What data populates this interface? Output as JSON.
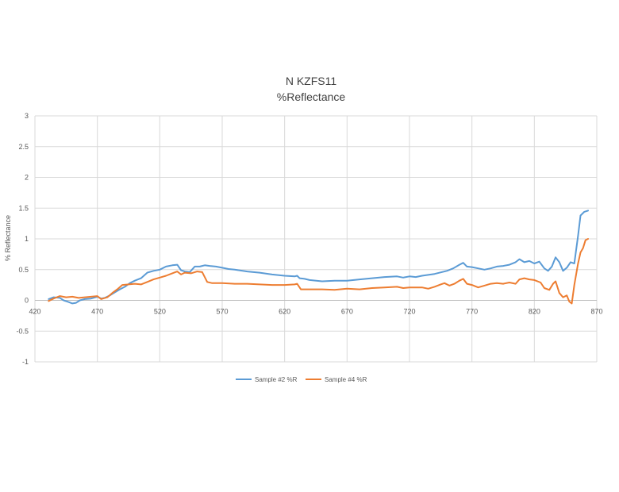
{
  "chart_data": {
    "type": "line",
    "title": "N KZFS11",
    "subtitle": "%Reflectance",
    "xlabel": "",
    "ylabel": "% Reflectance",
    "xlim": [
      420,
      870
    ],
    "ylim": [
      -1,
      3
    ],
    "x_ticks": [
      420,
      470,
      520,
      570,
      620,
      670,
      720,
      770,
      820,
      870
    ],
    "y_ticks": [
      -1,
      -0.5,
      0,
      0.5,
      1,
      1.5,
      2,
      2.5,
      3
    ],
    "grid": true,
    "legend": "bottom",
    "series": [
      {
        "name": "Sample #2 %R",
        "color": "#5b9bd5",
        "points": [
          [
            431,
            0.02
          ],
          [
            435,
            0.05
          ],
          [
            440,
            0.04
          ],
          [
            443,
            0.0
          ],
          [
            446,
            -0.02
          ],
          [
            450,
            -0.05
          ],
          [
            453,
            -0.04
          ],
          [
            456,
            0.0
          ],
          [
            460,
            0.02
          ],
          [
            465,
            0.03
          ],
          [
            470,
            0.06
          ],
          [
            473,
            0.03
          ],
          [
            476,
            0.04
          ],
          [
            480,
            0.08
          ],
          [
            484,
            0.13
          ],
          [
            488,
            0.18
          ],
          [
            492,
            0.22
          ],
          [
            496,
            0.28
          ],
          [
            500,
            0.32
          ],
          [
            505,
            0.36
          ],
          [
            510,
            0.45
          ],
          [
            515,
            0.48
          ],
          [
            520,
            0.5
          ],
          [
            525,
            0.55
          ],
          [
            530,
            0.57
          ],
          [
            534,
            0.58
          ],
          [
            537,
            0.49
          ],
          [
            540,
            0.47
          ],
          [
            544,
            0.46
          ],
          [
            548,
            0.55
          ],
          [
            552,
            0.55
          ],
          [
            556,
            0.57
          ],
          [
            560,
            0.56
          ],
          [
            565,
            0.55
          ],
          [
            570,
            0.53
          ],
          [
            575,
            0.51
          ],
          [
            580,
            0.5
          ],
          [
            590,
            0.47
          ],
          [
            600,
            0.45
          ],
          [
            610,
            0.42
          ],
          [
            620,
            0.4
          ],
          [
            628,
            0.39
          ],
          [
            630,
            0.4
          ],
          [
            632,
            0.36
          ],
          [
            636,
            0.35
          ],
          [
            640,
            0.33
          ],
          [
            650,
            0.31
          ],
          [
            660,
            0.32
          ],
          [
            670,
            0.32
          ],
          [
            680,
            0.34
          ],
          [
            690,
            0.36
          ],
          [
            700,
            0.38
          ],
          [
            710,
            0.39
          ],
          [
            715,
            0.37
          ],
          [
            720,
            0.39
          ],
          [
            725,
            0.38
          ],
          [
            730,
            0.4
          ],
          [
            740,
            0.43
          ],
          [
            750,
            0.48
          ],
          [
            755,
            0.52
          ],
          [
            760,
            0.58
          ],
          [
            763,
            0.61
          ],
          [
            766,
            0.55
          ],
          [
            770,
            0.54
          ],
          [
            775,
            0.52
          ],
          [
            780,
            0.5
          ],
          [
            785,
            0.52
          ],
          [
            790,
            0.55
          ],
          [
            795,
            0.56
          ],
          [
            800,
            0.58
          ],
          [
            805,
            0.62
          ],
          [
            808,
            0.67
          ],
          [
            812,
            0.62
          ],
          [
            816,
            0.64
          ],
          [
            820,
            0.6
          ],
          [
            824,
            0.63
          ],
          [
            828,
            0.52
          ],
          [
            831,
            0.48
          ],
          [
            834,
            0.55
          ],
          [
            837,
            0.7
          ],
          [
            840,
            0.62
          ],
          [
            843,
            0.48
          ],
          [
            846,
            0.53
          ],
          [
            849,
            0.62
          ],
          [
            852,
            0.6
          ],
          [
            855,
            1.05
          ],
          [
            857,
            1.38
          ],
          [
            860,
            1.44
          ],
          [
            863,
            1.46
          ]
        ]
      },
      {
        "name": "Sample #4 %R",
        "color": "#ed7d31",
        "points": [
          [
            431,
            -0.01
          ],
          [
            435,
            0.03
          ],
          [
            440,
            0.07
          ],
          [
            445,
            0.05
          ],
          [
            450,
            0.06
          ],
          [
            455,
            0.04
          ],
          [
            460,
            0.05
          ],
          [
            465,
            0.06
          ],
          [
            470,
            0.07
          ],
          [
            473,
            0.02
          ],
          [
            478,
            0.05
          ],
          [
            482,
            0.12
          ],
          [
            486,
            0.18
          ],
          [
            490,
            0.25
          ],
          [
            495,
            0.26
          ],
          [
            500,
            0.27
          ],
          [
            505,
            0.26
          ],
          [
            510,
            0.3
          ],
          [
            515,
            0.34
          ],
          [
            520,
            0.37
          ],
          [
            525,
            0.4
          ],
          [
            530,
            0.44
          ],
          [
            534,
            0.47
          ],
          [
            537,
            0.42
          ],
          [
            540,
            0.45
          ],
          [
            545,
            0.44
          ],
          [
            550,
            0.47
          ],
          [
            554,
            0.46
          ],
          [
            558,
            0.3
          ],
          [
            562,
            0.28
          ],
          [
            570,
            0.28
          ],
          [
            580,
            0.27
          ],
          [
            590,
            0.27
          ],
          [
            600,
            0.26
          ],
          [
            610,
            0.25
          ],
          [
            620,
            0.25
          ],
          [
            628,
            0.26
          ],
          [
            630,
            0.27
          ],
          [
            633,
            0.18
          ],
          [
            640,
            0.18
          ],
          [
            650,
            0.18
          ],
          [
            660,
            0.17
          ],
          [
            670,
            0.19
          ],
          [
            680,
            0.18
          ],
          [
            690,
            0.2
          ],
          [
            700,
            0.21
          ],
          [
            710,
            0.22
          ],
          [
            715,
            0.2
          ],
          [
            720,
            0.21
          ],
          [
            730,
            0.21
          ],
          [
            735,
            0.19
          ],
          [
            740,
            0.22
          ],
          [
            745,
            0.26
          ],
          [
            748,
            0.28
          ],
          [
            752,
            0.24
          ],
          [
            756,
            0.27
          ],
          [
            760,
            0.32
          ],
          [
            763,
            0.35
          ],
          [
            766,
            0.27
          ],
          [
            770,
            0.25
          ],
          [
            775,
            0.21
          ],
          [
            780,
            0.24
          ],
          [
            785,
            0.27
          ],
          [
            790,
            0.28
          ],
          [
            795,
            0.27
          ],
          [
            800,
            0.29
          ],
          [
            805,
            0.27
          ],
          [
            808,
            0.34
          ],
          [
            812,
            0.36
          ],
          [
            816,
            0.34
          ],
          [
            820,
            0.33
          ],
          [
            825,
            0.29
          ],
          [
            828,
            0.2
          ],
          [
            832,
            0.17
          ],
          [
            835,
            0.27
          ],
          [
            837,
            0.31
          ],
          [
            840,
            0.12
          ],
          [
            843,
            0.05
          ],
          [
            846,
            0.08
          ],
          [
            848,
            -0.02
          ],
          [
            850,
            -0.05
          ],
          [
            852,
            0.25
          ],
          [
            855,
            0.6
          ],
          [
            857,
            0.78
          ],
          [
            859,
            0.85
          ],
          [
            861,
            0.98
          ],
          [
            863,
            1.0
          ]
        ]
      }
    ]
  }
}
